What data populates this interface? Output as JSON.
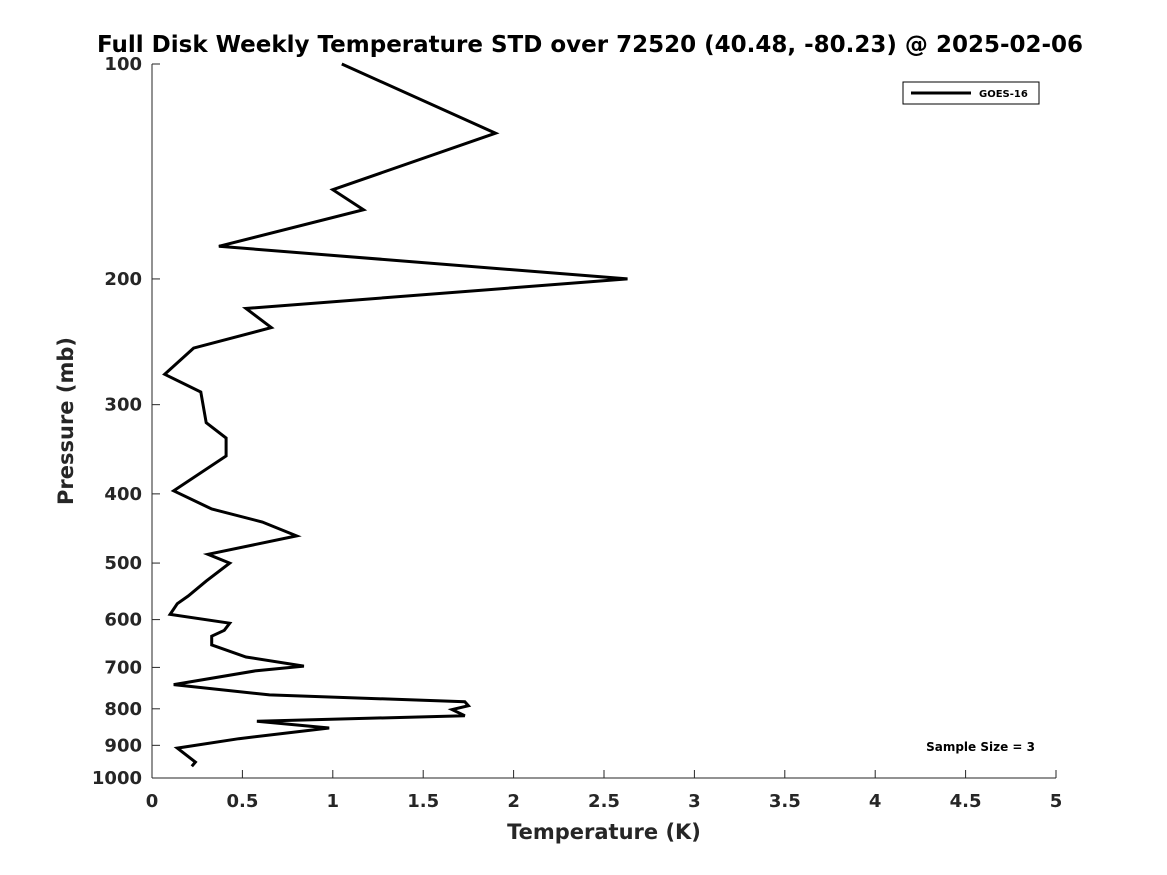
{
  "chart_data": {
    "type": "line",
    "title": "Full Disk Weekly Temperature STD over 72520 (40.48, -80.23) @ 2025-02-06",
    "xlabel": "Temperature (K)",
    "ylabel": "Pressure (mb)",
    "xlim": [
      0,
      5
    ],
    "ylim": [
      1000,
      100
    ],
    "yscale": "log",
    "y_reversed": true,
    "grid": false,
    "legend_position": "top-right",
    "x_ticks": [
      0,
      0.5,
      1,
      1.5,
      2,
      2.5,
      3,
      3.5,
      4,
      4.5,
      5
    ],
    "x_tick_labels": [
      "0",
      "0.5",
      "1",
      "1.5",
      "2",
      "2.5",
      "3",
      "3.5",
      "4",
      "4.5",
      "5"
    ],
    "y_ticks": [
      100,
      200,
      300,
      400,
      500,
      600,
      700,
      800,
      900,
      1000
    ],
    "y_tick_labels": [
      "100",
      "200",
      "300",
      "400",
      "500",
      "600",
      "700",
      "800",
      "900",
      "1000"
    ],
    "series": [
      {
        "name": "GOES-16",
        "color": "#000000",
        "points": [
          [
            1.05,
            100
          ],
          [
            1.9,
            125
          ],
          [
            1.0,
            150
          ],
          [
            1.17,
            160
          ],
          [
            0.37,
            180
          ],
          [
            2.63,
            200
          ],
          [
            0.52,
            220
          ],
          [
            0.66,
            234
          ],
          [
            0.23,
            250
          ],
          [
            0.07,
            272
          ],
          [
            0.27,
            288
          ],
          [
            0.3,
            318
          ],
          [
            0.41,
            334
          ],
          [
            0.41,
            354
          ],
          [
            0.12,
            396
          ],
          [
            0.33,
            420
          ],
          [
            0.61,
            438
          ],
          [
            0.8,
            458
          ],
          [
            0.31,
            486
          ],
          [
            0.43,
            500
          ],
          [
            0.3,
            530
          ],
          [
            0.2,
            556
          ],
          [
            0.14,
            570
          ],
          [
            0.1,
            590
          ],
          [
            0.43,
            607
          ],
          [
            0.4,
            621
          ],
          [
            0.33,
            633
          ],
          [
            0.33,
            651
          ],
          [
            0.52,
            677
          ],
          [
            0.84,
            697
          ],
          [
            0.57,
            708
          ],
          [
            0.12,
            740
          ],
          [
            0.65,
            765
          ],
          [
            1.73,
            782
          ],
          [
            1.75,
            792
          ],
          [
            1.66,
            802
          ],
          [
            1.73,
            818
          ],
          [
            0.58,
            833
          ],
          [
            0.98,
            851
          ],
          [
            0.48,
            881
          ],
          [
            0.14,
            908
          ],
          [
            0.24,
            950
          ],
          [
            0.22,
            963
          ]
        ]
      }
    ],
    "legend_entries": [
      "GOES-16"
    ],
    "annotation": "Sample Size = 3"
  }
}
